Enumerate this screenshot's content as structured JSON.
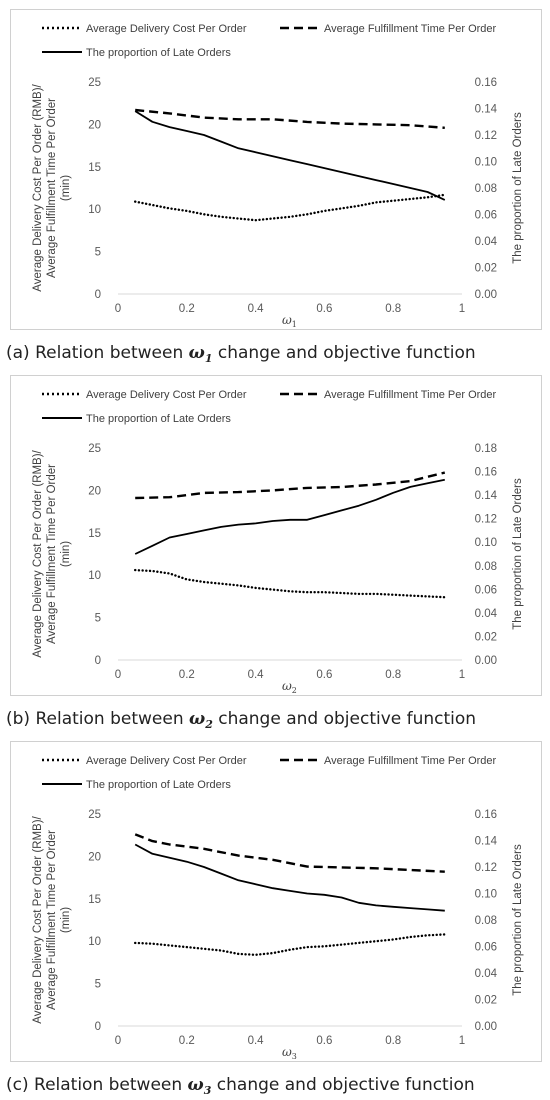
{
  "legend": {
    "cost": "Average Delivery Cost Per Order",
    "time": "Average Fulfillment Time Per Order",
    "late": "The proportion of Late Orders"
  },
  "y_left_label": [
    "Average Delivery Cost Per Order (RMB)/",
    "Average Fulfillment Time Per Order",
    "(min)"
  ],
  "y_right_label": "The proportion of Late Orders",
  "chart_data": [
    {
      "type": "line",
      "caption_prefix": "(a)  Relation between",
      "caption_var": "ω",
      "caption_sub": "1",
      "caption_suffix": "change and objective function",
      "xlabel_var": "ω",
      "xlabel_sub": "1",
      "x_ticks": [
        "0",
        "0.2",
        "0.4",
        "0.6",
        "0.8",
        "1"
      ],
      "xlim": [
        0,
        1
      ],
      "y_left_ticks": [
        "0",
        "5",
        "10",
        "15",
        "20",
        "25"
      ],
      "ylim_left": [
        0,
        25
      ],
      "y_right_ticks": [
        "0.00",
        "0.02",
        "0.04",
        "0.06",
        "0.08",
        "0.10",
        "0.12",
        "0.14",
        "0.16"
      ],
      "ylim_right": [
        0,
        0.16
      ],
      "series": [
        {
          "name": "Average Delivery Cost Per Order",
          "axis": "left",
          "style": "dotted",
          "x": [
            0.05,
            0.1,
            0.15,
            0.2,
            0.25,
            0.3,
            0.35,
            0.4,
            0.45,
            0.5,
            0.55,
            0.6,
            0.65,
            0.7,
            0.75,
            0.8,
            0.85,
            0.9,
            0.95
          ],
          "y": [
            10.9,
            10.5,
            10.1,
            9.8,
            9.4,
            9.1,
            8.9,
            8.7,
            8.9,
            9.1,
            9.4,
            9.8,
            10.1,
            10.4,
            10.8,
            11.0,
            11.2,
            11.4,
            11.7
          ]
        },
        {
          "name": "Average Fulfillment Time Per Order",
          "axis": "left",
          "style": "dashed",
          "x": [
            0.05,
            0.15,
            0.25,
            0.35,
            0.45,
            0.55,
            0.65,
            0.75,
            0.85,
            0.95
          ],
          "y": [
            21.7,
            21.3,
            20.8,
            20.6,
            20.6,
            20.3,
            20.1,
            20.0,
            19.9,
            19.6
          ]
        },
        {
          "name": "The proportion of Late Orders",
          "axis": "right",
          "style": "solid",
          "x": [
            0.05,
            0.1,
            0.15,
            0.2,
            0.25,
            0.3,
            0.35,
            0.4,
            0.45,
            0.5,
            0.55,
            0.6,
            0.65,
            0.7,
            0.75,
            0.8,
            0.85,
            0.9,
            0.95
          ],
          "y": [
            0.138,
            0.13,
            0.126,
            0.123,
            0.12,
            0.115,
            0.11,
            0.107,
            0.104,
            0.101,
            0.098,
            0.095,
            0.092,
            0.089,
            0.086,
            0.083,
            0.08,
            0.077,
            0.071
          ]
        }
      ]
    },
    {
      "type": "line",
      "caption_prefix": "(b)  Relation between",
      "caption_var": "ω",
      "caption_sub": "2",
      "caption_suffix": "change and objective function",
      "xlabel_var": "ω",
      "xlabel_sub": "2",
      "x_ticks": [
        "0",
        "0.2",
        "0.4",
        "0.6",
        "0.8",
        "1"
      ],
      "xlim": [
        0,
        1
      ],
      "y_left_ticks": [
        "0",
        "5",
        "10",
        "15",
        "20",
        "25"
      ],
      "ylim_left": [
        0,
        25
      ],
      "y_right_ticks": [
        "0.00",
        "0.02",
        "0.04",
        "0.06",
        "0.08",
        "0.10",
        "0.12",
        "0.14",
        "0.16",
        "0.18"
      ],
      "ylim_right": [
        0,
        0.18
      ],
      "series": [
        {
          "name": "Average Delivery Cost Per Order",
          "axis": "left",
          "style": "dotted",
          "x": [
            0.05,
            0.1,
            0.15,
            0.2,
            0.25,
            0.3,
            0.35,
            0.4,
            0.45,
            0.5,
            0.55,
            0.6,
            0.65,
            0.7,
            0.75,
            0.8,
            0.85,
            0.9,
            0.95
          ],
          "y": [
            10.6,
            10.5,
            10.2,
            9.5,
            9.2,
            9.0,
            8.8,
            8.5,
            8.3,
            8.1,
            8.0,
            8.0,
            7.9,
            7.8,
            7.8,
            7.7,
            7.6,
            7.5,
            7.4
          ]
        },
        {
          "name": "Average Fulfillment Time Per Order",
          "axis": "left",
          "style": "dashed",
          "x": [
            0.05,
            0.15,
            0.25,
            0.35,
            0.45,
            0.55,
            0.65,
            0.75,
            0.85,
            0.9,
            0.95
          ],
          "y": [
            19.1,
            19.2,
            19.7,
            19.8,
            20.0,
            20.3,
            20.4,
            20.7,
            21.1,
            21.6,
            22.1
          ]
        },
        {
          "name": "The proportion of Late Orders",
          "axis": "right",
          "style": "solid",
          "x": [
            0.05,
            0.1,
            0.15,
            0.2,
            0.25,
            0.3,
            0.35,
            0.4,
            0.45,
            0.5,
            0.55,
            0.6,
            0.65,
            0.7,
            0.75,
            0.8,
            0.85,
            0.9,
            0.95
          ],
          "y": [
            0.09,
            0.097,
            0.104,
            0.107,
            0.11,
            0.113,
            0.115,
            0.116,
            0.118,
            0.119,
            0.119,
            0.123,
            0.127,
            0.131,
            0.136,
            0.142,
            0.147,
            0.15,
            0.153
          ]
        }
      ]
    },
    {
      "type": "line",
      "caption_prefix": "(c)  Relation between",
      "caption_var": "ω",
      "caption_sub": "3",
      "caption_suffix": "change and objective function",
      "xlabel_var": "ω",
      "xlabel_sub": "3",
      "x_ticks": [
        "0",
        "0.2",
        "0.4",
        "0.6",
        "0.8",
        "1"
      ],
      "xlim": [
        0,
        1
      ],
      "y_left_ticks": [
        "0",
        "5",
        "10",
        "15",
        "20",
        "25"
      ],
      "ylim_left": [
        0,
        25
      ],
      "y_right_ticks": [
        "0.00",
        "0.02",
        "0.04",
        "0.06",
        "0.08",
        "0.10",
        "0.12",
        "0.14",
        "0.16"
      ],
      "ylim_right": [
        0,
        0.16
      ],
      "series": [
        {
          "name": "Average Delivery Cost Per Order",
          "axis": "left",
          "style": "dotted",
          "x": [
            0.05,
            0.1,
            0.15,
            0.2,
            0.25,
            0.3,
            0.35,
            0.4,
            0.45,
            0.5,
            0.55,
            0.6,
            0.65,
            0.7,
            0.75,
            0.8,
            0.85,
            0.9,
            0.95
          ],
          "y": [
            9.8,
            9.7,
            9.5,
            9.3,
            9.1,
            8.9,
            8.5,
            8.4,
            8.6,
            9.0,
            9.3,
            9.4,
            9.6,
            9.8,
            10.0,
            10.2,
            10.5,
            10.7,
            10.8
          ]
        },
        {
          "name": "Average Fulfillment Time Per Order",
          "axis": "left",
          "style": "dashed",
          "x": [
            0.05,
            0.1,
            0.15,
            0.25,
            0.35,
            0.45,
            0.55,
            0.65,
            0.75,
            0.85,
            0.95
          ],
          "y": [
            22.6,
            21.8,
            21.4,
            20.9,
            20.1,
            19.6,
            18.8,
            18.7,
            18.6,
            18.4,
            18.2
          ]
        },
        {
          "name": "The proportion of Late Orders",
          "axis": "right",
          "style": "solid",
          "x": [
            0.05,
            0.1,
            0.15,
            0.2,
            0.25,
            0.3,
            0.35,
            0.4,
            0.45,
            0.5,
            0.55,
            0.6,
            0.65,
            0.7,
            0.75,
            0.8,
            0.85,
            0.9,
            0.95
          ],
          "y": [
            0.137,
            0.13,
            0.127,
            0.124,
            0.12,
            0.115,
            0.11,
            0.107,
            0.104,
            0.102,
            0.1,
            0.099,
            0.097,
            0.093,
            0.091,
            0.09,
            0.089,
            0.088,
            0.087
          ]
        }
      ]
    }
  ]
}
